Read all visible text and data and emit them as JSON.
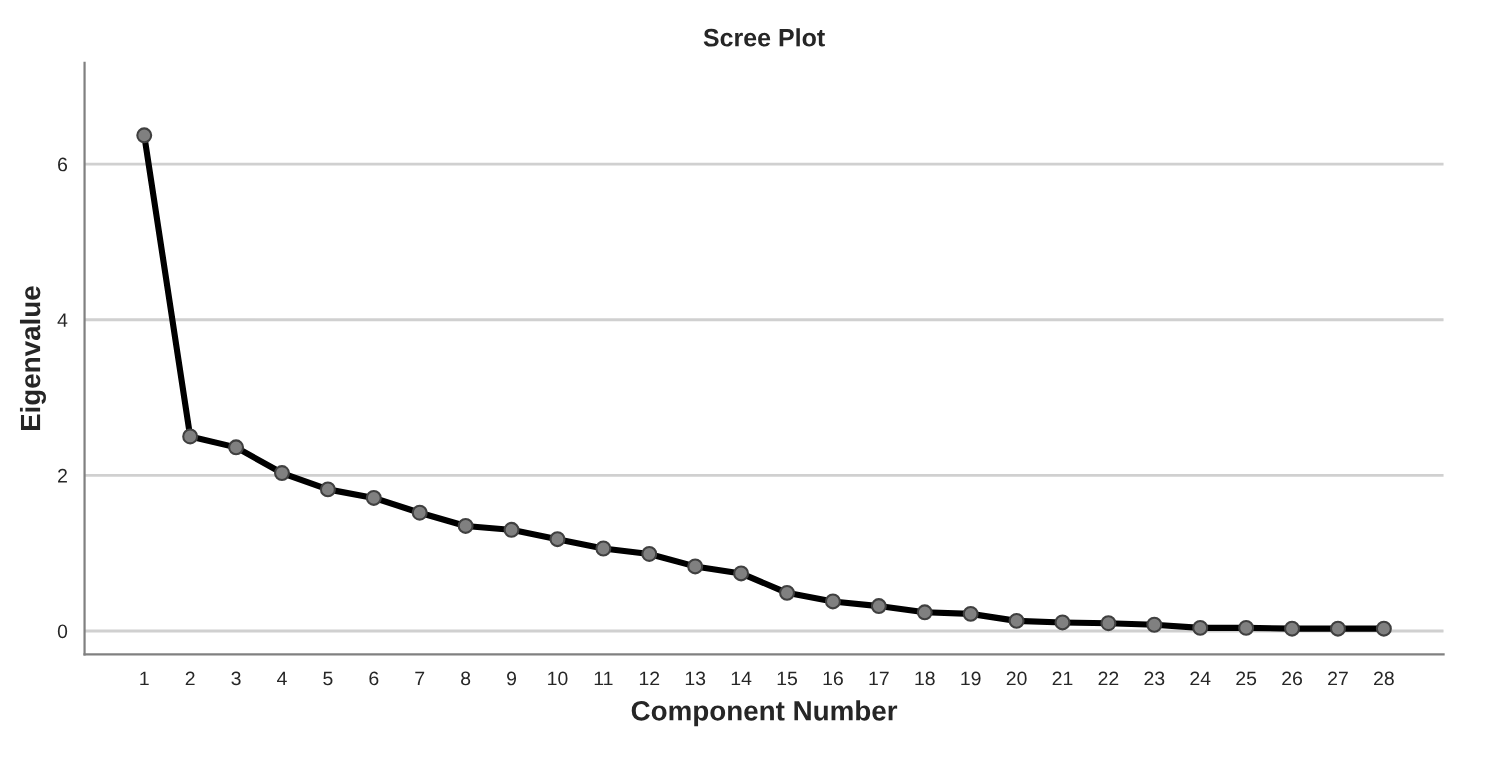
{
  "chart_data": {
    "type": "line",
    "title": "Scree Plot",
    "xlabel": "Component Number",
    "ylabel": "Eigenvalue",
    "categories": [
      "1",
      "2",
      "3",
      "4",
      "5",
      "6",
      "7",
      "8",
      "9",
      "10",
      "11",
      "12",
      "13",
      "14",
      "15",
      "16",
      "17",
      "18",
      "19",
      "20",
      "21",
      "22",
      "23",
      "24",
      "25",
      "26",
      "27",
      "28"
    ],
    "series": [
      {
        "color": "#000000",
        "values": [
          6.37,
          2.5,
          2.36,
          2.03,
          1.82,
          1.71,
          1.52,
          1.35,
          1.3,
          1.18,
          1.06,
          0.99,
          0.83,
          0.74,
          0.49,
          0.38,
          0.32,
          0.24,
          0.22,
          0.13,
          0.11,
          0.1,
          0.08,
          0.04,
          0.04,
          0.03,
          0.03,
          0.03
        ]
      }
    ],
    "ylim": [
      -0.3,
      7.3
    ],
    "yticks": [
      0,
      2,
      4,
      6
    ],
    "grid": "y",
    "marker": "circle",
    "line_style": "solid",
    "legend": false
  }
}
